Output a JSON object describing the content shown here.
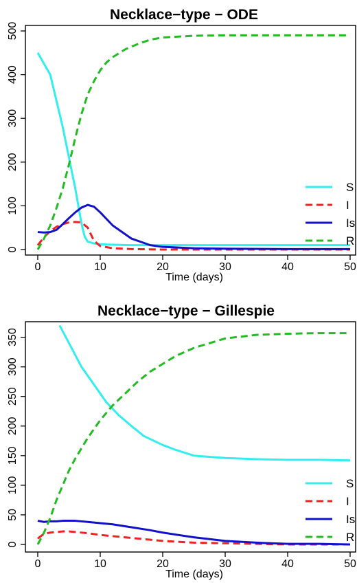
{
  "chart_data": [
    {
      "type": "line",
      "title": "Necklace−type − ODE",
      "xlabel": "Time (days)",
      "ylabel": "",
      "xlim": [
        0,
        50
      ],
      "ylim": [
        0,
        500
      ],
      "xticks": [
        "0",
        "10",
        "20",
        "30",
        "40",
        "50"
      ],
      "yticks": [
        "0",
        "100",
        "200",
        "300",
        "400",
        "500"
      ],
      "legend_position": "bottom-right",
      "grid": false,
      "series": [
        {
          "name": "S",
          "color": "#33eeee",
          "dash": "solid",
          "x": [
            0,
            1,
            2,
            3,
            4,
            5,
            6,
            7,
            7.5,
            8,
            9,
            10,
            12,
            15,
            20,
            30,
            40,
            50
          ],
          "y": [
            450,
            425,
            400,
            340,
            280,
            210,
            140,
            60,
            30,
            18,
            14,
            12,
            11,
            10,
            10,
            10,
            10,
            10
          ]
        },
        {
          "name": "I",
          "color": "#ee2222",
          "dash": "dashed",
          "x": [
            0,
            1,
            2,
            3,
            4,
            5,
            6,
            7,
            8,
            9,
            10,
            12,
            15,
            20,
            30,
            40,
            50
          ],
          "y": [
            10,
            28,
            42,
            52,
            58,
            62,
            63,
            62,
            50,
            20,
            8,
            3,
            1,
            0,
            0,
            0,
            0
          ]
        },
        {
          "name": "Is",
          "color": "#1111cc",
          "dash": "solid",
          "x": [
            0,
            1,
            2,
            3,
            4,
            5,
            6,
            7,
            8,
            9,
            10,
            12,
            15,
            18,
            20,
            25,
            30,
            40,
            50
          ],
          "y": [
            40,
            39,
            40,
            45,
            58,
            72,
            85,
            96,
            102,
            98,
            85,
            55,
            25,
            10,
            6,
            3,
            2,
            1,
            1
          ]
        },
        {
          "name": "R",
          "color": "#22bb22",
          "dash": "dashed",
          "x": [
            0,
            1,
            2,
            3,
            4,
            5,
            6,
            7,
            8,
            9,
            10,
            11,
            12,
            14,
            16,
            18,
            20,
            25,
            30,
            40,
            50
          ],
          "y": [
            0,
            25,
            55,
            95,
            140,
            195,
            255,
            310,
            355,
            385,
            410,
            428,
            440,
            458,
            470,
            480,
            485,
            489,
            490,
            490,
            490
          ]
        }
      ]
    },
    {
      "type": "line",
      "title": "Necklace−type − Gillespie",
      "xlabel": "Time (days)",
      "ylabel": "",
      "xlim": [
        0,
        50
      ],
      "ylim": [
        0,
        360
      ],
      "xticks": [
        "0",
        "10",
        "20",
        "30",
        "40",
        "50"
      ],
      "yticks": [
        "0",
        "50",
        "100",
        "150",
        "200",
        "250",
        "300",
        "350"
      ],
      "legend_position": "bottom-right",
      "grid": false,
      "series": [
        {
          "name": "S",
          "color": "#33eeee",
          "dash": "solid",
          "x": [
            3.5,
            5,
            7,
            9,
            11,
            13,
            15,
            17,
            20,
            22,
            25,
            30,
            35,
            40,
            45,
            50
          ],
          "y": [
            370,
            340,
            300,
            270,
            240,
            218,
            200,
            183,
            168,
            160,
            150,
            146,
            144,
            143,
            143,
            142
          ]
        },
        {
          "name": "I",
          "color": "#ee2222",
          "dash": "dashed",
          "x": [
            0,
            1,
            2,
            3,
            4,
            5,
            6,
            8,
            10,
            12,
            15,
            18,
            20,
            25,
            30,
            35,
            40,
            45,
            50
          ],
          "y": [
            10,
            18,
            20,
            21,
            22,
            22,
            21,
            19,
            16,
            14,
            11,
            8,
            6,
            3,
            2,
            1,
            0,
            0,
            0
          ]
        },
        {
          "name": "Is",
          "color": "#1111cc",
          "dash": "solid",
          "x": [
            0,
            1,
            2,
            3,
            4,
            5,
            6,
            8,
            10,
            12,
            15,
            18,
            20,
            25,
            30,
            35,
            40,
            45,
            50
          ],
          "y": [
            40,
            38,
            39,
            39,
            40,
            40,
            40,
            38,
            36,
            34,
            29,
            24,
            20,
            12,
            6,
            3,
            1,
            1,
            0
          ]
        },
        {
          "name": "R",
          "color": "#22bb22",
          "dash": "dashed",
          "x": [
            0,
            1,
            2,
            3,
            4,
            5,
            6,
            8,
            10,
            12,
            14,
            16,
            18,
            20,
            22,
            25,
            30,
            35,
            40,
            45,
            50
          ],
          "y": [
            0,
            20,
            45,
            75,
            100,
            125,
            145,
            180,
            210,
            235,
            255,
            275,
            292,
            305,
            318,
            332,
            348,
            354,
            356,
            357,
            357
          ]
        }
      ]
    }
  ]
}
